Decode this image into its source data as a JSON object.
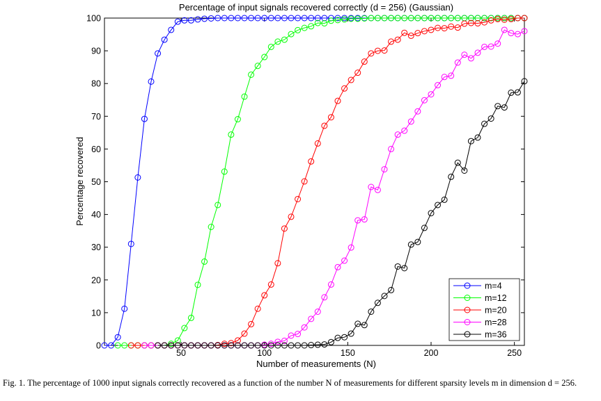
{
  "caption": "Fig. 1.  The percentage of 1000 input signals correctly recovered as a function of the number N of measurements for different sparsity levels m in dimension d = 256.",
  "chart_data": {
    "type": "line",
    "title": "Percentage of input signals recovered correctly (d = 256) (Gaussian)",
    "xlabel": "Number of measurements (N)",
    "ylabel": "Percentage recovered",
    "xlim": [
      4,
      256
    ],
    "ylim": [
      0,
      100
    ],
    "xticks": [
      50,
      100,
      150,
      200,
      250
    ],
    "yticks": [
      0,
      10,
      20,
      30,
      40,
      50,
      60,
      70,
      80,
      90,
      100
    ],
    "legend_position": "bottom-right",
    "grid": false,
    "colors": {
      "m=4": "#0000ff",
      "m=12": "#00ff00",
      "m=20": "#ff0000",
      "m=28": "#ff00ff",
      "m=36": "#000000"
    },
    "series": [
      {
        "name": "m=4",
        "x": [
          4,
          8,
          12,
          16,
          20,
          24,
          28,
          32,
          36,
          40,
          44,
          48,
          52,
          56,
          60,
          64,
          68,
          72,
          76,
          80,
          84,
          88,
          92,
          96,
          100,
          104,
          108,
          112,
          116,
          120,
          124,
          128,
          132,
          136,
          140,
          144,
          148,
          152,
          156,
          160,
          164,
          168,
          172,
          176,
          180,
          184,
          188,
          192,
          196,
          200,
          204,
          208,
          212,
          216,
          220,
          224,
          228,
          232,
          236,
          240,
          244,
          248,
          252,
          256
        ],
        "y": [
          0,
          0,
          2.5,
          11.2,
          31,
          51.3,
          69.2,
          80.6,
          89.2,
          93.4,
          96.4,
          98.9,
          99.3,
          99.3,
          99.6,
          99.8,
          99.9,
          100,
          100,
          100,
          100,
          100,
          100,
          100,
          100,
          100,
          100,
          100,
          100,
          100,
          100,
          100,
          100,
          100,
          100,
          100,
          100,
          100,
          100,
          100,
          100,
          100,
          100,
          100,
          100,
          100,
          100,
          100,
          100,
          100,
          100,
          100,
          100,
          100,
          100,
          100,
          100,
          100,
          100,
          100,
          100,
          100,
          100,
          100
        ]
      },
      {
        "name": "m=12",
        "x": [
          12,
          16,
          20,
          24,
          28,
          32,
          36,
          40,
          44,
          48,
          52,
          56,
          60,
          64,
          68,
          72,
          76,
          80,
          84,
          88,
          92,
          96,
          100,
          104,
          108,
          112,
          116,
          120,
          124,
          128,
          132,
          136,
          140,
          144,
          148,
          152,
          156,
          160,
          164,
          168,
          172,
          176,
          180,
          184,
          188,
          192,
          196,
          200,
          204,
          208,
          212,
          216,
          220,
          224,
          228,
          232,
          236,
          240,
          244,
          248,
          252,
          256
        ],
        "y": [
          0,
          0,
          0,
          0,
          0,
          0,
          0,
          0,
          0.5,
          1.5,
          5.3,
          8.4,
          18.5,
          25.6,
          36.2,
          42.9,
          53.1,
          64.4,
          69.1,
          76,
          82.7,
          85.4,
          88.1,
          91.2,
          92.8,
          93.4,
          95.1,
          96.3,
          97,
          97.5,
          98.5,
          98.4,
          99.2,
          99.4,
          99.6,
          99.8,
          99.8,
          99.9,
          100,
          100,
          100,
          100,
          100,
          100,
          100,
          100,
          100,
          100,
          100,
          100,
          100,
          100,
          100,
          100,
          100,
          100,
          100,
          100,
          100,
          100,
          100,
          100
        ]
      },
      {
        "name": "m=20",
        "x": [
          20,
          24,
          28,
          32,
          36,
          40,
          44,
          48,
          52,
          56,
          60,
          64,
          68,
          72,
          76,
          80,
          84,
          88,
          92,
          96,
          100,
          104,
          108,
          112,
          116,
          120,
          124,
          128,
          132,
          136,
          140,
          144,
          148,
          152,
          156,
          160,
          164,
          168,
          172,
          176,
          180,
          184,
          188,
          192,
          196,
          200,
          204,
          208,
          212,
          216,
          220,
          224,
          228,
          232,
          236,
          240,
          244,
          248,
          252,
          256
        ],
        "y": [
          0,
          0,
          0,
          0,
          0,
          0,
          0,
          0,
          0,
          0,
          0,
          0,
          0,
          0.1,
          0.5,
          0.7,
          1.5,
          3.6,
          6.5,
          11.2,
          15.3,
          18.6,
          25.1,
          35.7,
          39.3,
          44.7,
          50.1,
          56.2,
          61.7,
          67.1,
          69.7,
          74.7,
          78.5,
          81.1,
          83.3,
          86.7,
          89.2,
          90,
          90.1,
          92.8,
          93.4,
          95.5,
          94.6,
          95.4,
          96,
          96.4,
          97,
          96.9,
          97.4,
          97.1,
          98.3,
          98.5,
          98.4,
          98.7,
          99.3,
          99.7,
          99.5,
          99.7,
          100,
          100
        ]
      },
      {
        "name": "m=28",
        "x": [
          28,
          32,
          36,
          40,
          44,
          48,
          52,
          56,
          60,
          64,
          68,
          72,
          76,
          80,
          84,
          88,
          92,
          96,
          100,
          104,
          108,
          112,
          116,
          120,
          124,
          128,
          132,
          136,
          140,
          144,
          148,
          152,
          156,
          160,
          164,
          168,
          172,
          176,
          180,
          184,
          188,
          192,
          196,
          200,
          204,
          208,
          212,
          216,
          220,
          224,
          228,
          232,
          236,
          240,
          244,
          248,
          252,
          256
        ],
        "y": [
          0,
          0,
          0,
          0,
          0,
          0,
          0,
          0,
          0,
          0,
          0,
          0,
          0,
          0,
          0,
          0,
          0,
          0,
          0.2,
          0.5,
          1.1,
          1.4,
          3,
          3.5,
          5.5,
          8.1,
          10.3,
          14.7,
          18.6,
          23.9,
          25.9,
          29.9,
          38.2,
          38.5,
          48.4,
          47.5,
          53.8,
          60,
          64.4,
          65.6,
          68.4,
          71.5,
          74.9,
          76.7,
          79.5,
          82,
          82.4,
          86.4,
          88.8,
          87.7,
          89.4,
          91.2,
          91.3,
          92.2,
          96.4,
          95.4,
          95.1,
          96
        ]
      },
      {
        "name": "m=36",
        "x": [
          36,
          40,
          44,
          48,
          52,
          56,
          60,
          64,
          68,
          72,
          76,
          80,
          84,
          88,
          92,
          96,
          100,
          104,
          108,
          112,
          116,
          120,
          124,
          128,
          132,
          136,
          140,
          144,
          148,
          152,
          156,
          160,
          164,
          168,
          172,
          176,
          180,
          184,
          188,
          192,
          196,
          200,
          204,
          208,
          212,
          216,
          220,
          224,
          228,
          232,
          236,
          240,
          244,
          248,
          252,
          256
        ],
        "y": [
          0,
          0,
          0,
          0,
          0,
          0,
          0,
          0,
          0,
          0,
          0,
          0,
          0,
          0,
          0,
          0,
          0,
          0,
          0,
          0,
          0,
          0,
          0,
          0.1,
          0.2,
          0.3,
          1,
          2.3,
          2.5,
          3.6,
          6.6,
          6.2,
          10.3,
          13,
          15.1,
          16.9,
          24.1,
          23.6,
          30.8,
          31.6,
          35.9,
          40.4,
          42.9,
          44.5,
          51.5,
          55.8,
          53.4,
          62.4,
          63.5,
          67.7,
          69.3,
          73.1,
          72.7,
          77.2,
          77.3,
          80.7
        ]
      }
    ]
  }
}
